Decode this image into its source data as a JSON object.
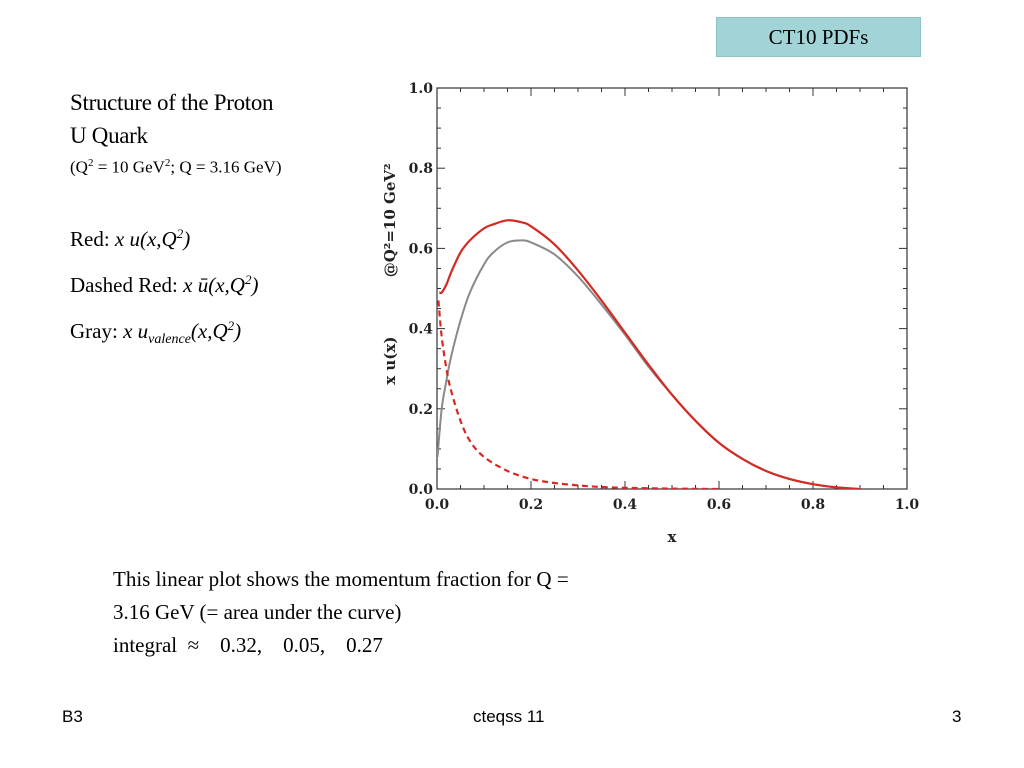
{
  "header": {
    "badge": "CT10 PDFs"
  },
  "title": {
    "line1": "Structure of the Proton",
    "line2": "U Quark",
    "line3_prefix": "(Q",
    "line3_sup1": "2",
    "line3_mid": " = 10 GeV",
    "line3_sup2": "2",
    "line3_suffix": "; Q = 3.16 GeV)"
  },
  "legend": {
    "red_label": "Red:",
    "red_expr": "x u(x,Q",
    "red_sup": "2",
    "red_close": ")",
    "dashed_label": "Dashed Red:",
    "dashed_expr": "x ū(x,Q",
    "dashed_sup": "2",
    "dashed_close": ")",
    "gray_label": "Gray:",
    "gray_expr": "x u",
    "gray_sub": "valence",
    "gray_tail": "(x,Q",
    "gray_sup": "2",
    "gray_close": ")"
  },
  "caption": {
    "line1": "This linear plot shows the momentum fraction for Q =",
    "line2": "3.16 GeV (= area under the curve)",
    "line3": "integral  ≈    0.32,    0.05,    0.27"
  },
  "footer": {
    "left": "B3",
    "center": "cteqss 11",
    "right": "3"
  },
  "chart_data": {
    "type": "line",
    "xlabel": "x",
    "ylabel": "x u(x)",
    "ylabel_extra": "@Q²=10 GeV²",
    "xlim": [
      0,
      1
    ],
    "ylim": [
      0,
      1
    ],
    "xticks": [
      "0.0",
      "0.2",
      "0.4",
      "0.6",
      "0.8",
      "1.0"
    ],
    "yticks": [
      "0.0",
      "0.2",
      "0.4",
      "0.6",
      "0.8",
      "1.0"
    ],
    "colors": {
      "total": "#d42a22",
      "sea": "#d42a22",
      "valence": "#8a8a8a"
    },
    "series": [
      {
        "key": "total",
        "style": "solid",
        "x": [
          0.005,
          0.01,
          0.02,
          0.03,
          0.05,
          0.07,
          0.1,
          0.12,
          0.15,
          0.18,
          0.2,
          0.25,
          0.3,
          0.35,
          0.4,
          0.45,
          0.5,
          0.55,
          0.6,
          0.65,
          0.7,
          0.75,
          0.8,
          0.85,
          0.9
        ],
        "y": [
          0.49,
          0.49,
          0.51,
          0.54,
          0.59,
          0.62,
          0.65,
          0.66,
          0.67,
          0.665,
          0.655,
          0.61,
          0.545,
          0.47,
          0.39,
          0.31,
          0.235,
          0.17,
          0.115,
          0.075,
          0.045,
          0.025,
          0.012,
          0.004,
          0.0
        ]
      },
      {
        "key": "sea",
        "style": "dashed",
        "x": [
          0.003,
          0.01,
          0.02,
          0.03,
          0.05,
          0.07,
          0.1,
          0.15,
          0.2,
          0.25,
          0.3,
          0.35,
          0.4,
          0.5,
          0.6
        ],
        "y": [
          0.47,
          0.38,
          0.3,
          0.245,
          0.17,
          0.12,
          0.08,
          0.045,
          0.025,
          0.015,
          0.009,
          0.005,
          0.003,
          0.001,
          0.0
        ]
      },
      {
        "key": "valence",
        "style": "solid",
        "x": [
          0.001,
          0.01,
          0.02,
          0.03,
          0.05,
          0.07,
          0.1,
          0.12,
          0.15,
          0.18,
          0.2,
          0.25,
          0.3,
          0.35,
          0.4,
          0.45,
          0.5,
          0.55,
          0.6,
          0.65,
          0.7,
          0.75,
          0.8,
          0.85,
          0.9
        ],
        "y": [
          0.08,
          0.2,
          0.27,
          0.33,
          0.42,
          0.49,
          0.56,
          0.59,
          0.615,
          0.62,
          0.615,
          0.585,
          0.53,
          0.46,
          0.385,
          0.305,
          0.235,
          0.17,
          0.115,
          0.075,
          0.045,
          0.025,
          0.012,
          0.004,
          0.0
        ]
      }
    ]
  }
}
